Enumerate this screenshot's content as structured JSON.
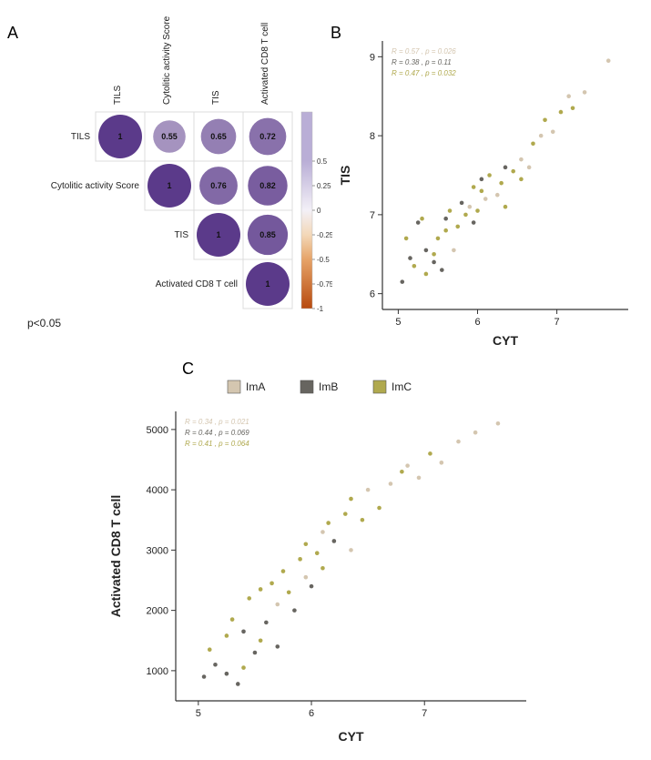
{
  "panels": {
    "A": "A",
    "B": "B",
    "C": "C"
  },
  "corrplot": {
    "labels": [
      "TILS",
      "Cytolitic activity Score",
      "TIS",
      "Activated CD8 T cell"
    ],
    "row_labels": [
      "TILS",
      "Cytolitic activity Score",
      "TIS",
      "Activated CD8 T cell"
    ],
    "matrix": [
      [
        1.0,
        0.55,
        0.65,
        0.72
      ],
      [
        0.55,
        1.0,
        0.76,
        0.82
      ],
      [
        0.65,
        0.76,
        1.0,
        0.85
      ],
      [
        0.72,
        0.82,
        0.85,
        1.0
      ]
    ],
    "pvalue_text": "p<0.05",
    "cell_size": 54,
    "grid_color": "#dcdcdc",
    "circle_neg_color": "#c55a11",
    "circle_pos_color": "#5b3a8a",
    "mid_color": "#f2e0c9",
    "value_font_size": 9,
    "label_font_size": 10,
    "colorbar": {
      "ticks": [
        "0.5",
        "0.25",
        "0",
        "-0.25",
        "-0.5",
        "-0.75",
        "-1"
      ],
      "tick_positions": [
        0.25,
        0.375,
        0.5,
        0.625,
        0.75,
        0.875,
        1.0
      ],
      "gradient": [
        {
          "stop": 0,
          "color": "#b9aed6"
        },
        {
          "stop": 0.25,
          "color": "#b9aed6"
        },
        {
          "stop": 0.5,
          "color": "#f3f0f7"
        },
        {
          "stop": 0.625,
          "color": "#f3d8b8"
        },
        {
          "stop": 0.75,
          "color": "#e6a368"
        },
        {
          "stop": 1.0,
          "color": "#b74a0e"
        }
      ]
    }
  },
  "legend": {
    "items": [
      {
        "label": "ImA",
        "color": "#d4c6b0"
      },
      {
        "label": "ImB",
        "color": "#676560"
      },
      {
        "label": "ImC",
        "color": "#b0a94e"
      }
    ],
    "font_size": 12
  },
  "scatterB": {
    "xlabel": "CYT",
    "ylabel": "TIS",
    "xlim": [
      4.8,
      7.9
    ],
    "ylim": [
      5.8,
      9.2
    ],
    "xticks": [
      5,
      6,
      7
    ],
    "yticks": [
      6,
      7,
      8,
      9
    ],
    "axis_color": "#333333",
    "tick_font_size": 11,
    "label_font_size": 14,
    "point_radius": 2.3,
    "stats": [
      {
        "text": "R = 0.57 , p = 0.026",
        "color": "#d4c6b0"
      },
      {
        "text": "R = 0.38 , p = 0.11",
        "color": "#676560"
      },
      {
        "text": "R = 0.47 , p = 0.032",
        "color": "#b0a94e"
      }
    ],
    "stats_font_size": 8,
    "points": [
      {
        "x": 5.05,
        "y": 6.15,
        "g": "ImB"
      },
      {
        "x": 5.15,
        "y": 6.45,
        "g": "ImB"
      },
      {
        "x": 5.1,
        "y": 6.7,
        "g": "ImC"
      },
      {
        "x": 5.25,
        "y": 6.9,
        "g": "ImB"
      },
      {
        "x": 5.2,
        "y": 6.35,
        "g": "ImC"
      },
      {
        "x": 5.35,
        "y": 6.25,
        "g": "ImC"
      },
      {
        "x": 5.35,
        "y": 6.55,
        "g": "ImB"
      },
      {
        "x": 5.3,
        "y": 6.95,
        "g": "ImC"
      },
      {
        "x": 5.45,
        "y": 6.5,
        "g": "ImC"
      },
      {
        "x": 5.45,
        "y": 6.4,
        "g": "ImB"
      },
      {
        "x": 5.55,
        "y": 6.3,
        "g": "ImB"
      },
      {
        "x": 5.5,
        "y": 6.7,
        "g": "ImC"
      },
      {
        "x": 5.6,
        "y": 6.8,
        "g": "ImC"
      },
      {
        "x": 5.6,
        "y": 6.95,
        "g": "ImB"
      },
      {
        "x": 5.7,
        "y": 6.55,
        "g": "ImA"
      },
      {
        "x": 5.65,
        "y": 7.05,
        "g": "ImC"
      },
      {
        "x": 5.75,
        "y": 6.85,
        "g": "ImC"
      },
      {
        "x": 5.8,
        "y": 7.15,
        "g": "ImB"
      },
      {
        "x": 5.85,
        "y": 7.0,
        "g": "ImC"
      },
      {
        "x": 5.9,
        "y": 7.1,
        "g": "ImA"
      },
      {
        "x": 5.95,
        "y": 7.35,
        "g": "ImC"
      },
      {
        "x": 5.95,
        "y": 6.9,
        "g": "ImB"
      },
      {
        "x": 6.0,
        "y": 7.05,
        "g": "ImC"
      },
      {
        "x": 6.05,
        "y": 7.3,
        "g": "ImC"
      },
      {
        "x": 6.1,
        "y": 7.2,
        "g": "ImA"
      },
      {
        "x": 6.05,
        "y": 7.45,
        "g": "ImB"
      },
      {
        "x": 6.15,
        "y": 7.5,
        "g": "ImC"
      },
      {
        "x": 6.25,
        "y": 7.25,
        "g": "ImA"
      },
      {
        "x": 6.3,
        "y": 7.4,
        "g": "ImC"
      },
      {
        "x": 6.35,
        "y": 7.6,
        "g": "ImB"
      },
      {
        "x": 6.35,
        "y": 7.1,
        "g": "ImC"
      },
      {
        "x": 6.45,
        "y": 7.55,
        "g": "ImC"
      },
      {
        "x": 6.55,
        "y": 7.7,
        "g": "ImA"
      },
      {
        "x": 6.55,
        "y": 7.45,
        "g": "ImC"
      },
      {
        "x": 6.7,
        "y": 7.9,
        "g": "ImC"
      },
      {
        "x": 6.65,
        "y": 7.6,
        "g": "ImA"
      },
      {
        "x": 6.8,
        "y": 8.0,
        "g": "ImA"
      },
      {
        "x": 6.85,
        "y": 8.2,
        "g": "ImC"
      },
      {
        "x": 6.95,
        "y": 8.05,
        "g": "ImA"
      },
      {
        "x": 7.05,
        "y": 8.3,
        "g": "ImC"
      },
      {
        "x": 7.15,
        "y": 8.5,
        "g": "ImA"
      },
      {
        "x": 7.2,
        "y": 8.35,
        "g": "ImC"
      },
      {
        "x": 7.35,
        "y": 8.55,
        "g": "ImA"
      },
      {
        "x": 7.65,
        "y": 8.95,
        "g": "ImA"
      }
    ]
  },
  "scatterC": {
    "xlabel": "CYT",
    "ylabel": "Activated CD8 T cell",
    "xlim": [
      4.8,
      7.9
    ],
    "ylim": [
      500,
      5300
    ],
    "xticks": [
      5,
      6,
      7
    ],
    "yticks": [
      1000,
      2000,
      3000,
      4000,
      5000
    ],
    "axis_color": "#333333",
    "tick_font_size": 11,
    "label_font_size": 14,
    "point_radius": 2.3,
    "stats": [
      {
        "text": "R = 0.34 , p = 0.021",
        "color": "#d4c6b0"
      },
      {
        "text": "R = 0.44 , p = 0.069",
        "color": "#676560"
      },
      {
        "text": "R = 0.41 , p = 0.064",
        "color": "#b0a94e"
      }
    ],
    "stats_font_size": 8,
    "points": [
      {
        "x": 5.05,
        "y": 900,
        "g": "ImB"
      },
      {
        "x": 5.1,
        "y": 1350,
        "g": "ImC"
      },
      {
        "x": 5.15,
        "y": 1100,
        "g": "ImB"
      },
      {
        "x": 5.25,
        "y": 1580,
        "g": "ImC"
      },
      {
        "x": 5.25,
        "y": 950,
        "g": "ImB"
      },
      {
        "x": 5.3,
        "y": 1850,
        "g": "ImC"
      },
      {
        "x": 5.35,
        "y": 780,
        "g": "ImB"
      },
      {
        "x": 5.4,
        "y": 1050,
        "g": "ImC"
      },
      {
        "x": 5.4,
        "y": 1650,
        "g": "ImB"
      },
      {
        "x": 5.45,
        "y": 2200,
        "g": "ImC"
      },
      {
        "x": 5.5,
        "y": 1300,
        "g": "ImB"
      },
      {
        "x": 5.55,
        "y": 1500,
        "g": "ImC"
      },
      {
        "x": 5.55,
        "y": 2350,
        "g": "ImC"
      },
      {
        "x": 5.6,
        "y": 1800,
        "g": "ImB"
      },
      {
        "x": 5.65,
        "y": 2450,
        "g": "ImC"
      },
      {
        "x": 5.7,
        "y": 2100,
        "g": "ImA"
      },
      {
        "x": 5.7,
        "y": 1400,
        "g": "ImB"
      },
      {
        "x": 5.75,
        "y": 2650,
        "g": "ImC"
      },
      {
        "x": 5.8,
        "y": 2300,
        "g": "ImC"
      },
      {
        "x": 5.85,
        "y": 2000,
        "g": "ImB"
      },
      {
        "x": 5.9,
        "y": 2850,
        "g": "ImC"
      },
      {
        "x": 5.95,
        "y": 2550,
        "g": "ImA"
      },
      {
        "x": 5.95,
        "y": 3100,
        "g": "ImC"
      },
      {
        "x": 6.0,
        "y": 2400,
        "g": "ImB"
      },
      {
        "x": 6.05,
        "y": 2950,
        "g": "ImC"
      },
      {
        "x": 6.1,
        "y": 3300,
        "g": "ImA"
      },
      {
        "x": 6.1,
        "y": 2700,
        "g": "ImC"
      },
      {
        "x": 6.15,
        "y": 3450,
        "g": "ImC"
      },
      {
        "x": 6.2,
        "y": 3150,
        "g": "ImB"
      },
      {
        "x": 6.3,
        "y": 3600,
        "g": "ImC"
      },
      {
        "x": 6.35,
        "y": 3000,
        "g": "ImA"
      },
      {
        "x": 6.35,
        "y": 3850,
        "g": "ImC"
      },
      {
        "x": 6.45,
        "y": 3500,
        "g": "ImC"
      },
      {
        "x": 6.5,
        "y": 4000,
        "g": "ImA"
      },
      {
        "x": 6.6,
        "y": 3700,
        "g": "ImC"
      },
      {
        "x": 6.7,
        "y": 4100,
        "g": "ImA"
      },
      {
        "x": 6.8,
        "y": 4300,
        "g": "ImC"
      },
      {
        "x": 6.85,
        "y": 4400,
        "g": "ImA"
      },
      {
        "x": 6.95,
        "y": 4200,
        "g": "ImA"
      },
      {
        "x": 7.05,
        "y": 4600,
        "g": "ImC"
      },
      {
        "x": 7.15,
        "y": 4450,
        "g": "ImA"
      },
      {
        "x": 7.3,
        "y": 4800,
        "g": "ImA"
      },
      {
        "x": 7.45,
        "y": 4950,
        "g": "ImA"
      },
      {
        "x": 7.65,
        "y": 5100,
        "g": "ImA"
      }
    ]
  }
}
